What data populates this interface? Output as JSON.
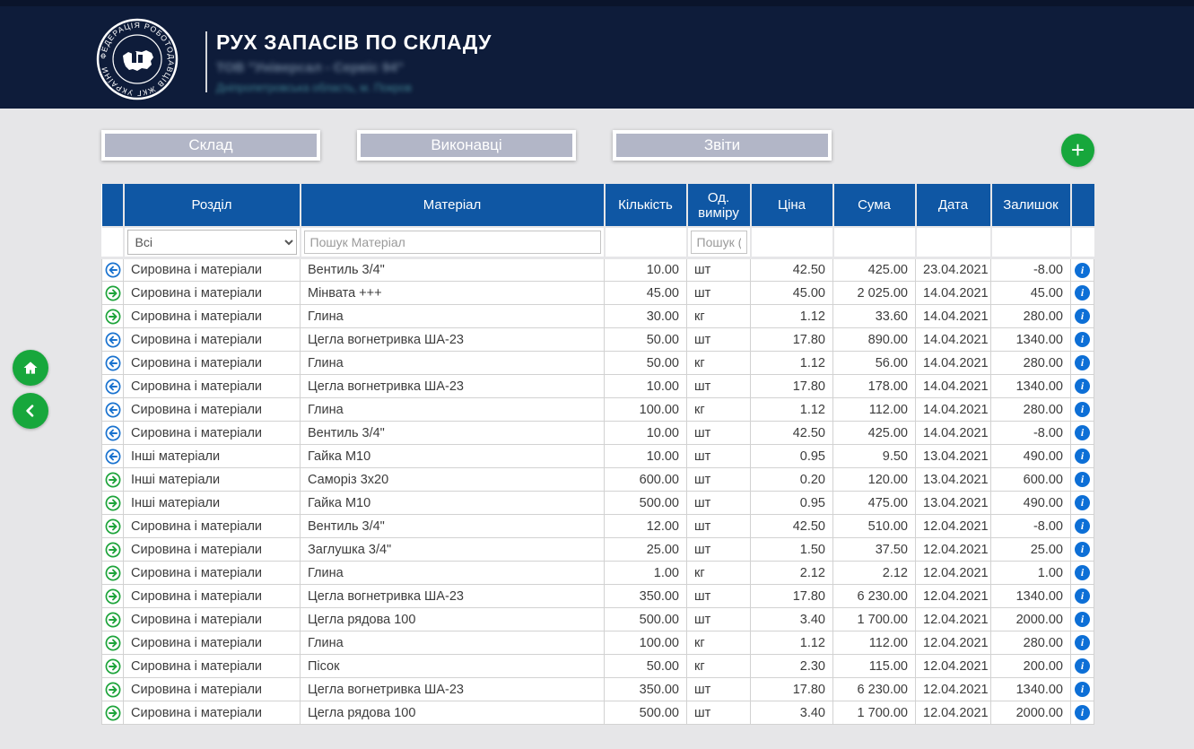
{
  "header": {
    "title": "РУХ ЗАПАСІВ ПО СКЛАДУ",
    "org_name": "ТОВ \"Універсал - Сервіс 94\"",
    "org_location": "Дніпропетровська область, м. Покров",
    "logo_ring_text": "ФЕДЕРАЦІЯ РОБОТОДАВЦІВ ЖКГ УКРАЇНИ"
  },
  "nav": {
    "buttons": [
      "Склад",
      "Виконавці",
      "Звіти"
    ],
    "add_label": "+"
  },
  "side_buttons": {
    "home": "home-icon",
    "back": "chevron-left-icon"
  },
  "table": {
    "columns": [
      "Розділ",
      "Матеріал",
      "Кількість",
      "Од. виміру",
      "Ціна",
      "Сума",
      "Дата",
      "Залишок"
    ],
    "filters": {
      "section_selected": "Всі",
      "material_placeholder": "Пошук Матеріал",
      "unit_placeholder": "Пошук ("
    },
    "rows": [
      {
        "dir": "out",
        "section": "Сировина і матеріали",
        "material": "Вентиль 3/4\"",
        "qty": "10.00",
        "unit": "шт",
        "price": "42.50",
        "sum": "425.00",
        "date": "23.04.2021",
        "balance": "-8.00"
      },
      {
        "dir": "in",
        "section": "Сировина і матеріали",
        "material": "Мінвата +++",
        "qty": "45.00",
        "unit": "шт",
        "price": "45.00",
        "sum": "2 025.00",
        "date": "14.04.2021",
        "balance": "45.00"
      },
      {
        "dir": "in",
        "section": "Сировина і матеріали",
        "material": "Глина",
        "qty": "30.00",
        "unit": "кг",
        "price": "1.12",
        "sum": "33.60",
        "date": "14.04.2021",
        "balance": "280.00"
      },
      {
        "dir": "out",
        "section": "Сировина і матеріали",
        "material": "Цегла вогнетривка ША-23",
        "qty": "50.00",
        "unit": "шт",
        "price": "17.80",
        "sum": "890.00",
        "date": "14.04.2021",
        "balance": "1340.00"
      },
      {
        "dir": "out",
        "section": "Сировина і матеріали",
        "material": "Глина",
        "qty": "50.00",
        "unit": "кг",
        "price": "1.12",
        "sum": "56.00",
        "date": "14.04.2021",
        "balance": "280.00"
      },
      {
        "dir": "out",
        "section": "Сировина і матеріали",
        "material": "Цегла вогнетривка ША-23",
        "qty": "10.00",
        "unit": "шт",
        "price": "17.80",
        "sum": "178.00",
        "date": "14.04.2021",
        "balance": "1340.00"
      },
      {
        "dir": "out",
        "section": "Сировина і матеріали",
        "material": "Глина",
        "qty": "100.00",
        "unit": "кг",
        "price": "1.12",
        "sum": "112.00",
        "date": "14.04.2021",
        "balance": "280.00"
      },
      {
        "dir": "out",
        "section": "Сировина і матеріали",
        "material": "Вентиль 3/4\"",
        "qty": "10.00",
        "unit": "шт",
        "price": "42.50",
        "sum": "425.00",
        "date": "14.04.2021",
        "balance": "-8.00"
      },
      {
        "dir": "out",
        "section": "Інші матеріали",
        "material": "Гайка М10",
        "qty": "10.00",
        "unit": "шт",
        "price": "0.95",
        "sum": "9.50",
        "date": "13.04.2021",
        "balance": "490.00"
      },
      {
        "dir": "in",
        "section": "Інші матеріали",
        "material": "Саморіз 3х20",
        "qty": "600.00",
        "unit": "шт",
        "price": "0.20",
        "sum": "120.00",
        "date": "13.04.2021",
        "balance": "600.00"
      },
      {
        "dir": "in",
        "section": "Інші матеріали",
        "material": "Гайка М10",
        "qty": "500.00",
        "unit": "шт",
        "price": "0.95",
        "sum": "475.00",
        "date": "13.04.2021",
        "balance": "490.00"
      },
      {
        "dir": "in",
        "section": "Сировина і матеріали",
        "material": "Вентиль 3/4\"",
        "qty": "12.00",
        "unit": "шт",
        "price": "42.50",
        "sum": "510.00",
        "date": "12.04.2021",
        "balance": "-8.00"
      },
      {
        "dir": "in",
        "section": "Сировина і матеріали",
        "material": "Заглушка 3/4\"",
        "qty": "25.00",
        "unit": "шт",
        "price": "1.50",
        "sum": "37.50",
        "date": "12.04.2021",
        "balance": "25.00"
      },
      {
        "dir": "in",
        "section": "Сировина і матеріали",
        "material": "Глина",
        "qty": "1.00",
        "unit": "кг",
        "price": "2.12",
        "sum": "2.12",
        "date": "12.04.2021",
        "balance": "1.00"
      },
      {
        "dir": "in",
        "section": "Сировина і матеріали",
        "material": "Цегла вогнетривка ША-23",
        "qty": "350.00",
        "unit": "шт",
        "price": "17.80",
        "sum": "6 230.00",
        "date": "12.04.2021",
        "balance": "1340.00"
      },
      {
        "dir": "in",
        "section": "Сировина і матеріали",
        "material": "Цегла рядова 100",
        "qty": "500.00",
        "unit": "шт",
        "price": "3.40",
        "sum": "1 700.00",
        "date": "12.04.2021",
        "balance": "2000.00"
      },
      {
        "dir": "in",
        "section": "Сировина і матеріали",
        "material": "Глина",
        "qty": "100.00",
        "unit": "кг",
        "price": "1.12",
        "sum": "112.00",
        "date": "12.04.2021",
        "balance": "280.00"
      },
      {
        "dir": "in",
        "section": "Сировина і матеріали",
        "material": "Пісок",
        "qty": "50.00",
        "unit": "кг",
        "price": "2.30",
        "sum": "115.00",
        "date": "12.04.2021",
        "balance": "200.00"
      },
      {
        "dir": "in",
        "section": "Сировина і матеріали",
        "material": "Цегла вогнетривка ША-23",
        "qty": "350.00",
        "unit": "шт",
        "price": "17.80",
        "sum": "6 230.00",
        "date": "12.04.2021",
        "balance": "1340.00"
      },
      {
        "dir": "in",
        "section": "Сировина і матеріали",
        "material": "Цегла рядова 100",
        "qty": "500.00",
        "unit": "шт",
        "price": "3.40",
        "sum": "1 700.00",
        "date": "12.04.2021",
        "balance": "2000.00"
      }
    ],
    "info_label": "i"
  },
  "colors": {
    "header_bg": "#0e1c3a",
    "table_header_bg": "#0f57a4",
    "button_bg": "#b2b6c7",
    "green": "#17a73c",
    "arrow_in_green": "#1ea43b",
    "arrow_out_blue": "#1a73cf",
    "info_blue": "#0d6fd6",
    "page_bg": "#e6e6e8"
  }
}
